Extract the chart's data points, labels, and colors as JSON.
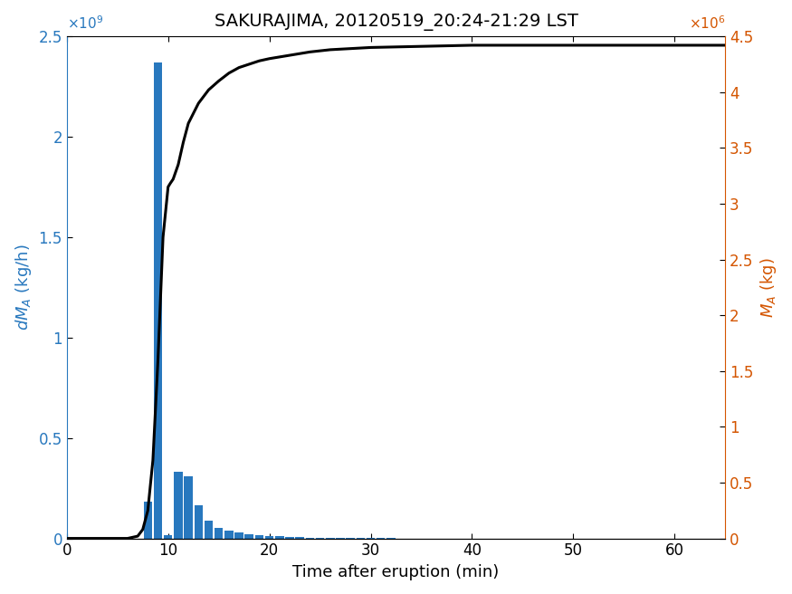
{
  "title": "SAKURAJIMA, 20120519_20:24-21:29 LST",
  "xlabel": "Time after eruption (min)",
  "ylabel_left": "$dM_A$ (kg/h)",
  "ylabel_right": "$M_A$ (kg)",
  "bar_color": "#2878BE",
  "line_color": "#000000",
  "left_axis_color": "#2878BE",
  "right_axis_color": "#D45500",
  "xlim": [
    0,
    65
  ],
  "ylim_left": [
    0,
    2500000000.0
  ],
  "ylim_right": [
    0,
    4500000.0
  ],
  "bar_centers": [
    8,
    9,
    10,
    11,
    12,
    13,
    14,
    15,
    16,
    17,
    18,
    19,
    20,
    21,
    22,
    23,
    24,
    25,
    26,
    27,
    28,
    29,
    30,
    31,
    32,
    33,
    34,
    35,
    36,
    37,
    38,
    39,
    40,
    41,
    42,
    43,
    44
  ],
  "bar_heights": [
    185000000.0,
    2370000000.0,
    15000000.0,
    330000000.0,
    310000000.0,
    165000000.0,
    90000000.0,
    50000000.0,
    38000000.0,
    28000000.0,
    22000000.0,
    17000000.0,
    13000000.0,
    10000000.0,
    7000000.0,
    5000000.0,
    4000000.0,
    3000000.0,
    2500000.0,
    2000000.0,
    1500000.0,
    1000000.0,
    800000.0,
    500000.0,
    400000.0,
    300000.0,
    200000.0,
    150000.0,
    100000.0,
    80000.0,
    50000.0,
    40000.0,
    30000.0,
    20000.0,
    15000.0,
    10000.0,
    8000.0
  ],
  "bar_width": 0.85,
  "cumulative_times": [
    0,
    5,
    6,
    7,
    7.5,
    8.0,
    8.5,
    9.0,
    9.5,
    10.0,
    10.2,
    10.5,
    11.0,
    11.5,
    12.0,
    13.0,
    14.0,
    15.0,
    16.0,
    17.0,
    18.0,
    19.0,
    20.0,
    22.0,
    24.0,
    26.0,
    28.0,
    30.0,
    35.0,
    40.0,
    42.0,
    45.0,
    50.0,
    55.0,
    60.0,
    65.0
  ],
  "cumulative_values": [
    0,
    0,
    0,
    20000.0,
    80000.0,
    250000.0,
    700000.0,
    1600000.0,
    2700000.0,
    3150000.0,
    3180000.0,
    3220000.0,
    3350000.0,
    3550000.0,
    3720000.0,
    3900000.0,
    4020000.0,
    4100000.0,
    4170000.0,
    4220000.0,
    4250000.0,
    4280000.0,
    4300000.0,
    4330000.0,
    4360000.0,
    4380000.0,
    4390000.0,
    4400000.0,
    4410000.0,
    4420000.0,
    4420000.0,
    4420000.0,
    4420000.0,
    4420000.0,
    4420000.0,
    4420000.0
  ],
  "xticks": [
    0,
    10,
    20,
    30,
    40,
    50,
    60
  ],
  "yticks_left_vals": [
    0,
    500000000.0,
    1000000000.0,
    1500000000.0,
    2000000000.0,
    2500000000.0
  ],
  "yticks_left_labels": [
    "0",
    "0.5",
    "1",
    "1.5",
    "2",
    "2.5"
  ],
  "yticks_right_vals": [
    0,
    500000.0,
    1000000.0,
    1500000.0,
    2000000.0,
    2500000.0,
    3000000.0,
    3500000.0,
    4000000.0,
    4500000.0
  ],
  "yticks_right_labels": [
    "0",
    "0.5",
    "1",
    "1.5",
    "2",
    "2.5",
    "3",
    "3.5",
    "4",
    "4.5"
  ],
  "exp_left": "×10⁹",
  "exp_right": "×10⁶",
  "title_fontsize": 14,
  "label_fontsize": 13,
  "tick_fontsize": 12
}
